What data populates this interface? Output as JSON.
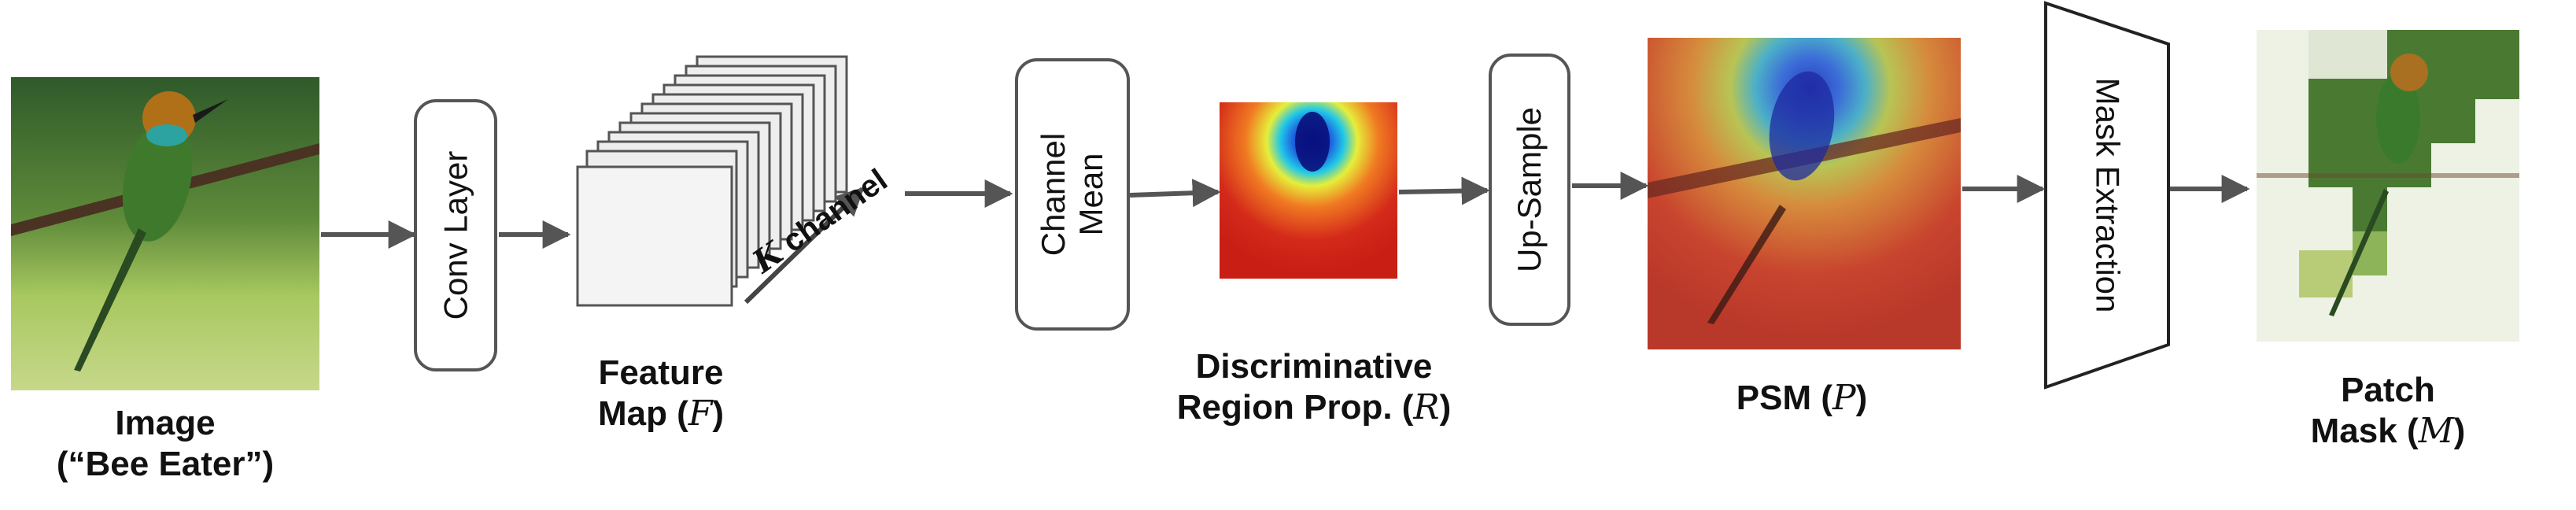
{
  "stages": {
    "image": {
      "title": "Image",
      "caption": "(“Bee Eater”)"
    },
    "conv": {
      "label": "Conv Layer"
    },
    "feature_map": {
      "title": "Feature",
      "line2": "Map (",
      "symbol": "F",
      "close": ")",
      "channel_prefix": "K",
      "channel_text": " channel"
    },
    "channel_mean": {
      "line1": "Channel",
      "line2": "Mean"
    },
    "region": {
      "title": "Discriminative",
      "line2": "Region Prop. (",
      "symbol": "R",
      "close": ")"
    },
    "upsample": {
      "label": "Up-Sample"
    },
    "psm": {
      "title": "PSM (",
      "symbol": "P",
      "close": ")"
    },
    "mask_extraction": {
      "label": "Mask Extraction"
    },
    "patch_mask": {
      "title": "Patch",
      "line2": "Mask (",
      "symbol": "M",
      "close": ")"
    }
  },
  "colors": {
    "arrow": "#555555",
    "box_border": "#555555",
    "feature_sheet_fill": "#eeeeee",
    "heat_hot": "#d42a1a",
    "heat_cool": "#1020b0"
  }
}
